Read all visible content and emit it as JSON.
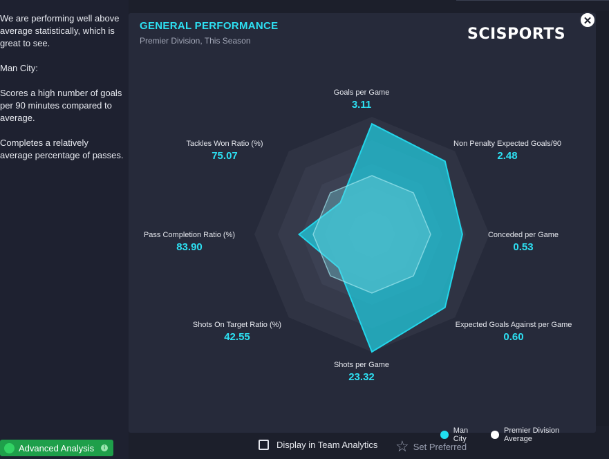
{
  "left_panel": {
    "paragraphs": [
      "We are performing well above\naverage statistically, which is\ngreat to see.",
      "Man City:",
      "Scores a high number of goals\nper 90 minutes compared to\naverage.",
      "Completes a relatively\naverage percentage of passes."
    ]
  },
  "card": {
    "title": "GENERAL PERFORMANCE",
    "subtitle": "Premier Division, This Season",
    "logo": "SCISPORTS",
    "close_icon": "close-icon"
  },
  "chart_data": {
    "type": "radar",
    "axes": [
      {
        "name": "Goals per Game",
        "value": "3.11"
      },
      {
        "name": "Non Penalty Expected Goals/90",
        "value": "2.48"
      },
      {
        "name": "Conceded per Game",
        "value": "0.53"
      },
      {
        "name": "Expected Goals Against per Game",
        "value": "0.60"
      },
      {
        "name": "Shots per Game",
        "value": "23.32"
      },
      {
        "name": "Shots On Target Ratio (%)",
        "value": "42.55"
      },
      {
        "name": "Pass Completion Ratio (%)",
        "value": "83.90"
      },
      {
        "name": "Tackles Won Ratio (%)",
        "value": "75.07"
      }
    ],
    "series": [
      {
        "name": "Man City",
        "color": "#21c3d6",
        "normalized": [
          0.94,
          0.88,
          0.77,
          0.88,
          1.0,
          0.4,
          0.62,
          0.38
        ]
      },
      {
        "name": "Premier Division Average",
        "color": "#ffffff",
        "normalized": [
          0.5,
          0.5,
          0.5,
          0.5,
          0.5,
          0.5,
          0.5,
          0.5
        ]
      }
    ]
  },
  "legend": {
    "man_city": "Man City",
    "average": "Premier Division Average"
  },
  "footer": {
    "advanced_analysis": "Advanced Analysis",
    "display_in_team_analytics": "Display in Team Analytics",
    "set_preferred": "Set Preferred"
  }
}
